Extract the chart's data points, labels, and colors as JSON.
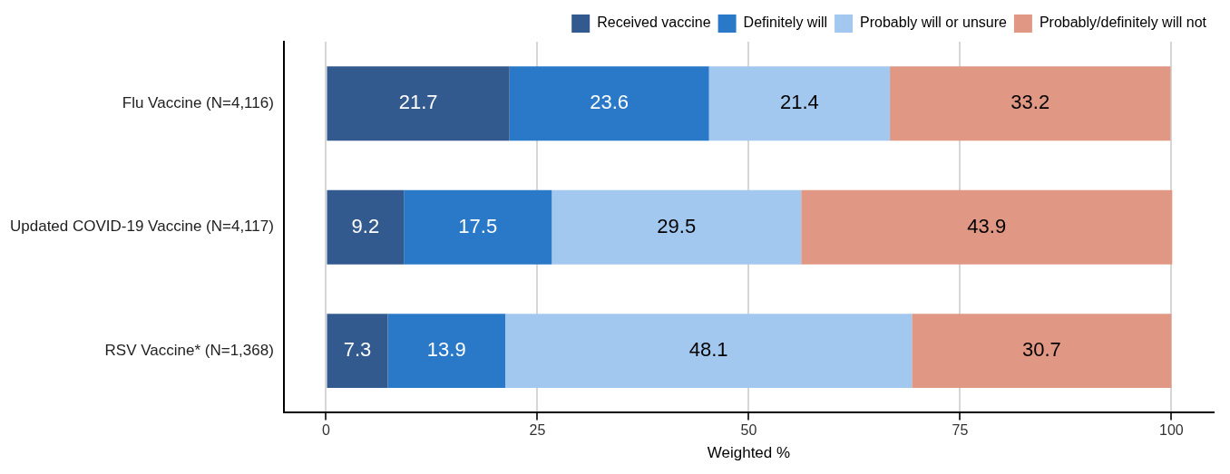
{
  "chart_data": {
    "type": "bar",
    "orientation": "horizontal",
    "stacked": true,
    "xlabel": "Weighted %",
    "categories": [
      "Flu Vaccine (N=4,116)",
      "Updated COVID-19 Vaccine (N=4,117)",
      "RSV Vaccine* (N=1,368)"
    ],
    "series": [
      {
        "name": "Received vaccine",
        "color": "#335a8e",
        "values": [
          21.7,
          9.2,
          7.3
        ]
      },
      {
        "name": "Definitely will",
        "color": "#2a78c8",
        "values": [
          23.6,
          17.5,
          13.9
        ]
      },
      {
        "name": "Probably will or unsure",
        "color": "#a3c8ef",
        "values": [
          21.4,
          29.5,
          48.1
        ]
      },
      {
        "name": "Probably/definitely will not",
        "color": "#e09884",
        "values": [
          33.2,
          43.9,
          30.7
        ]
      }
    ],
    "xlim": [
      -5,
      105
    ],
    "xticks": [
      0,
      25,
      50,
      75,
      100
    ],
    "grid": "x",
    "legend": "top right",
    "data_labels": true
  }
}
